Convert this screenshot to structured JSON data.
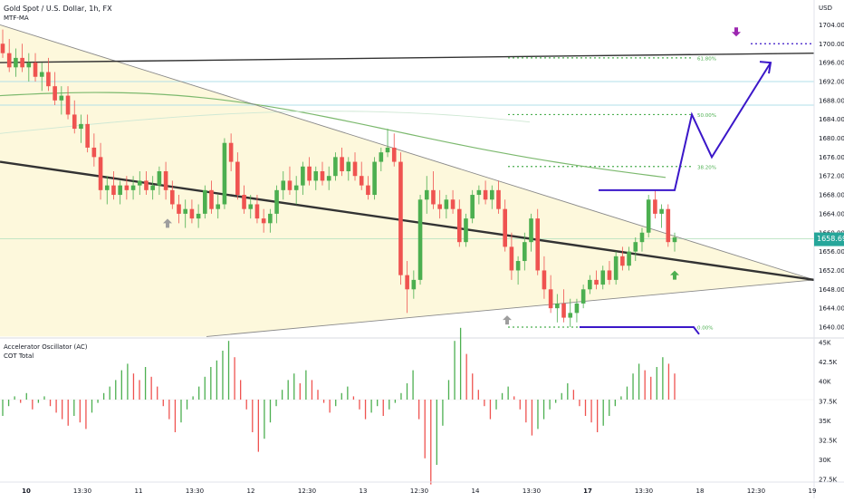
{
  "header": {
    "symbol_title": "Gold Spot / U.S. Dollar, 1h, FX",
    "indicator": "MTF-MA"
  },
  "price_axis": {
    "currency": "USD",
    "ticks": [
      "1704.00",
      "1700.00",
      "1696.00",
      "1692.00",
      "1688.00",
      "1684.00",
      "1680.00",
      "1676.00",
      "1672.00",
      "1668.00",
      "1664.00",
      "1660.00",
      "1656.00",
      "1652.00",
      "1648.00",
      "1644.00",
      "1640.00"
    ],
    "current_price": "1658.69",
    "current_price_color": "#26a69a"
  },
  "oscillator_pane": {
    "title": "Accelerator Oscillator (AC)",
    "subtitle": "COT Total",
    "ticks": [
      "45K",
      "42.5K",
      "40K",
      "37.5K",
      "35K",
      "32.5K",
      "30K",
      "27.5K"
    ]
  },
  "time_axis": {
    "labels": [
      "10",
      "13:30",
      "11",
      "13:30",
      "12",
      "12:30",
      "13",
      "12:30",
      "14",
      "13:30",
      "17",
      "13:30",
      "18",
      "12:30",
      "19"
    ],
    "bold_labels": [
      "10",
      "17"
    ]
  },
  "fib_levels": [
    {
      "label": "61.80%",
      "price": 1697
    },
    {
      "label": "50.00%",
      "price": 1685
    },
    {
      "label": "38.20%",
      "price": 1674
    },
    {
      "label": "0.00%",
      "price": 1640
    }
  ],
  "colors": {
    "bull": "#4caf50",
    "bear": "#ef5350",
    "pattern_fill": "#fdf8dc",
    "projection": "#3b17c9",
    "ma_green": "#7cb96e",
    "trendline": "#333333",
    "marker_purple": "#9c27b0"
  },
  "chart_data": {
    "type": "candlestick",
    "symbol": "XAUUSD",
    "timeframe": "1h",
    "y_range": [
      1638,
      1707
    ],
    "ohlc": [
      {
        "o": 1700,
        "h": 1703,
        "l": 1697,
        "c": 1698
      },
      {
        "o": 1698,
        "h": 1701,
        "l": 1694,
        "c": 1695
      },
      {
        "o": 1695,
        "h": 1699,
        "l": 1693,
        "c": 1697
      },
      {
        "o": 1697,
        "h": 1700,
        "l": 1694,
        "c": 1695
      },
      {
        "o": 1695,
        "h": 1698,
        "l": 1692,
        "c": 1696
      },
      {
        "o": 1696,
        "h": 1698,
        "l": 1692,
        "c": 1693
      },
      {
        "o": 1693,
        "h": 1696,
        "l": 1690,
        "c": 1694
      },
      {
        "o": 1694,
        "h": 1697,
        "l": 1690,
        "c": 1691
      },
      {
        "o": 1691,
        "h": 1694,
        "l": 1687,
        "c": 1688
      },
      {
        "o": 1688,
        "h": 1691,
        "l": 1685,
        "c": 1689
      },
      {
        "o": 1689,
        "h": 1691,
        "l": 1684,
        "c": 1685
      },
      {
        "o": 1685,
        "h": 1688,
        "l": 1681,
        "c": 1682
      },
      {
        "o": 1682,
        "h": 1685,
        "l": 1679,
        "c": 1683
      },
      {
        "o": 1683,
        "h": 1685,
        "l": 1677,
        "c": 1678
      },
      {
        "o": 1678,
        "h": 1681,
        "l": 1674,
        "c": 1676
      },
      {
        "o": 1676,
        "h": 1679,
        "l": 1667,
        "c": 1669
      },
      {
        "o": 1669,
        "h": 1672,
        "l": 1666,
        "c": 1670
      },
      {
        "o": 1670,
        "h": 1673,
        "l": 1667,
        "c": 1668
      },
      {
        "o": 1668,
        "h": 1671,
        "l": 1666,
        "c": 1670
      },
      {
        "o": 1670,
        "h": 1672,
        "l": 1667,
        "c": 1669
      },
      {
        "o": 1669,
        "h": 1672,
        "l": 1667,
        "c": 1670
      },
      {
        "o": 1670,
        "h": 1673,
        "l": 1668,
        "c": 1671
      },
      {
        "o": 1671,
        "h": 1673,
        "l": 1668,
        "c": 1669
      },
      {
        "o": 1669,
        "h": 1672,
        "l": 1667,
        "c": 1670
      },
      {
        "o": 1670,
        "h": 1674,
        "l": 1668,
        "c": 1673
      },
      {
        "o": 1673,
        "h": 1675,
        "l": 1667,
        "c": 1669
      },
      {
        "o": 1669,
        "h": 1671,
        "l": 1665,
        "c": 1666
      },
      {
        "o": 1666,
        "h": 1668,
        "l": 1662,
        "c": 1664
      },
      {
        "o": 1664,
        "h": 1667,
        "l": 1661,
        "c": 1665
      },
      {
        "o": 1665,
        "h": 1667,
        "l": 1662,
        "c": 1663
      },
      {
        "o": 1663,
        "h": 1666,
        "l": 1661,
        "c": 1664
      },
      {
        "o": 1664,
        "h": 1670,
        "l": 1663,
        "c": 1669
      },
      {
        "o": 1669,
        "h": 1671,
        "l": 1664,
        "c": 1665
      },
      {
        "o": 1665,
        "h": 1668,
        "l": 1663,
        "c": 1666
      },
      {
        "o": 1666,
        "h": 1680,
        "l": 1665,
        "c": 1679
      },
      {
        "o": 1679,
        "h": 1681,
        "l": 1673,
        "c": 1675
      },
      {
        "o": 1675,
        "h": 1677,
        "l": 1667,
        "c": 1668
      },
      {
        "o": 1668,
        "h": 1670,
        "l": 1664,
        "c": 1665
      },
      {
        "o": 1665,
        "h": 1668,
        "l": 1663,
        "c": 1666
      },
      {
        "o": 1666,
        "h": 1668,
        "l": 1662,
        "c": 1663
      },
      {
        "o": 1663,
        "h": 1665,
        "l": 1660,
        "c": 1662
      },
      {
        "o": 1662,
        "h": 1665,
        "l": 1660,
        "c": 1664
      },
      {
        "o": 1664,
        "h": 1670,
        "l": 1662,
        "c": 1669
      },
      {
        "o": 1669,
        "h": 1673,
        "l": 1667,
        "c": 1671
      },
      {
        "o": 1671,
        "h": 1674,
        "l": 1668,
        "c": 1669
      },
      {
        "o": 1669,
        "h": 1672,
        "l": 1666,
        "c": 1670
      },
      {
        "o": 1670,
        "h": 1675,
        "l": 1668,
        "c": 1674
      },
      {
        "o": 1674,
        "h": 1676,
        "l": 1670,
        "c": 1671
      },
      {
        "o": 1671,
        "h": 1674,
        "l": 1669,
        "c": 1673
      },
      {
        "o": 1673,
        "h": 1675,
        "l": 1670,
        "c": 1671
      },
      {
        "o": 1671,
        "h": 1674,
        "l": 1669,
        "c": 1672
      },
      {
        "o": 1672,
        "h": 1677,
        "l": 1671,
        "c": 1676
      },
      {
        "o": 1676,
        "h": 1678,
        "l": 1672,
        "c": 1673
      },
      {
        "o": 1673,
        "h": 1676,
        "l": 1671,
        "c": 1675
      },
      {
        "o": 1675,
        "h": 1677,
        "l": 1671,
        "c": 1672
      },
      {
        "o": 1672,
        "h": 1675,
        "l": 1669,
        "c": 1670
      },
      {
        "o": 1670,
        "h": 1672,
        "l": 1667,
        "c": 1668
      },
      {
        "o": 1668,
        "h": 1676,
        "l": 1667,
        "c": 1675
      },
      {
        "o": 1675,
        "h": 1678,
        "l": 1673,
        "c": 1677
      },
      {
        "o": 1677,
        "h": 1682,
        "l": 1676,
        "c": 1678
      },
      {
        "o": 1678,
        "h": 1681,
        "l": 1674,
        "c": 1675
      },
      {
        "o": 1675,
        "h": 1677,
        "l": 1649,
        "c": 1651
      },
      {
        "o": 1651,
        "h": 1654,
        "l": 1643,
        "c": 1648
      },
      {
        "o": 1648,
        "h": 1652,
        "l": 1646,
        "c": 1650
      },
      {
        "o": 1650,
        "h": 1668,
        "l": 1649,
        "c": 1667
      },
      {
        "o": 1667,
        "h": 1672,
        "l": 1664,
        "c": 1669
      },
      {
        "o": 1669,
        "h": 1673,
        "l": 1665,
        "c": 1666
      },
      {
        "o": 1666,
        "h": 1669,
        "l": 1663,
        "c": 1665
      },
      {
        "o": 1665,
        "h": 1668,
        "l": 1663,
        "c": 1667
      },
      {
        "o": 1667,
        "h": 1669,
        "l": 1664,
        "c": 1665
      },
      {
        "o": 1665,
        "h": 1667,
        "l": 1657,
        "c": 1658
      },
      {
        "o": 1658,
        "h": 1664,
        "l": 1657,
        "c": 1663
      },
      {
        "o": 1663,
        "h": 1669,
        "l": 1662,
        "c": 1668
      },
      {
        "o": 1668,
        "h": 1670,
        "l": 1666,
        "c": 1669
      },
      {
        "o": 1669,
        "h": 1671,
        "l": 1666,
        "c": 1667
      },
      {
        "o": 1667,
        "h": 1670,
        "l": 1665,
        "c": 1669
      },
      {
        "o": 1669,
        "h": 1671,
        "l": 1664,
        "c": 1665
      },
      {
        "o": 1665,
        "h": 1667,
        "l": 1656,
        "c": 1657
      },
      {
        "o": 1657,
        "h": 1660,
        "l": 1650,
        "c": 1652
      },
      {
        "o": 1652,
        "h": 1655,
        "l": 1649,
        "c": 1654
      },
      {
        "o": 1654,
        "h": 1660,
        "l": 1652,
        "c": 1658
      },
      {
        "o": 1658,
        "h": 1664,
        "l": 1656,
        "c": 1663
      },
      {
        "o": 1663,
        "h": 1665,
        "l": 1651,
        "c": 1652
      },
      {
        "o": 1652,
        "h": 1655,
        "l": 1646,
        "c": 1648
      },
      {
        "o": 1648,
        "h": 1651,
        "l": 1643,
        "c": 1644
      },
      {
        "o": 1644,
        "h": 1647,
        "l": 1641,
        "c": 1645
      },
      {
        "o": 1645,
        "h": 1648,
        "l": 1641,
        "c": 1642
      },
      {
        "o": 1642,
        "h": 1646,
        "l": 1640,
        "c": 1643
      },
      {
        "o": 1643,
        "h": 1646,
        "l": 1641,
        "c": 1645
      },
      {
        "o": 1645,
        "h": 1649,
        "l": 1644,
        "c": 1648
      },
      {
        "o": 1648,
        "h": 1651,
        "l": 1647,
        "c": 1650
      },
      {
        "o": 1650,
        "h": 1652,
        "l": 1648,
        "c": 1649
      },
      {
        "o": 1649,
        "h": 1653,
        "l": 1648,
        "c": 1652
      },
      {
        "o": 1652,
        "h": 1654,
        "l": 1649,
        "c": 1650
      },
      {
        "o": 1650,
        "h": 1656,
        "l": 1649,
        "c": 1655
      },
      {
        "o": 1655,
        "h": 1657,
        "l": 1652,
        "c": 1653
      },
      {
        "o": 1653,
        "h": 1657,
        "l": 1652,
        "c": 1656
      },
      {
        "o": 1656,
        "h": 1659,
        "l": 1654,
        "c": 1658
      },
      {
        "o": 1658,
        "h": 1661,
        "l": 1656,
        "c": 1660
      },
      {
        "o": 1660,
        "h": 1668,
        "l": 1659,
        "c": 1667
      },
      {
        "o": 1667,
        "h": 1669,
        "l": 1663,
        "c": 1664
      },
      {
        "o": 1664,
        "h": 1666,
        "l": 1661,
        "c": 1665
      },
      {
        "o": 1665,
        "h": 1666,
        "l": 1657,
        "c": 1658
      },
      {
        "o": 1658,
        "h": 1660,
        "l": 1656,
        "c": 1659
      }
    ],
    "oscillator": [
      {
        "v": -5
      },
      {
        "v": -2
      },
      {
        "v": 1
      },
      {
        "v": -1
      },
      {
        "v": 2
      },
      {
        "v": -3
      },
      {
        "v": -1
      },
      {
        "v": 1
      },
      {
        "v": -2
      },
      {
        "v": -4
      },
      {
        "v": -6
      },
      {
        "v": -8
      },
      {
        "v": -5
      },
      {
        "v": -7
      },
      {
        "v": -9
      },
      {
        "v": -4
      },
      {
        "v": -1
      },
      {
        "v": 2
      },
      {
        "v": 4
      },
      {
        "v": 6
      },
      {
        "v": 9
      },
      {
        "v": 11
      },
      {
        "v": 8
      },
      {
        "v": 6
      },
      {
        "v": 10
      },
      {
        "v": 7
      },
      {
        "v": 4
      },
      {
        "v": -2
      },
      {
        "v": -6
      },
      {
        "v": -10
      },
      {
        "v": -7
      },
      {
        "v": -3
      },
      {
        "v": 1
      },
      {
        "v": 4
      },
      {
        "v": 7
      },
      {
        "v": 10
      },
      {
        "v": 12
      },
      {
        "v": 15
      },
      {
        "v": 18
      },
      {
        "v": 13
      },
      {
        "v": 6
      },
      {
        "v": -3
      },
      {
        "v": -10
      },
      {
        "v": -16
      },
      {
        "v": -12
      },
      {
        "v": -7
      },
      {
        "v": -2
      },
      {
        "v": 3
      },
      {
        "v": 6
      },
      {
        "v": 8
      },
      {
        "v": 5
      },
      {
        "v": 9
      },
      {
        "v": 6
      },
      {
        "v": 3
      },
      {
        "v": -1
      },
      {
        "v": -4
      },
      {
        "v": -2
      },
      {
        "v": 2
      },
      {
        "v": 4
      },
      {
        "v": 1
      },
      {
        "v": -3
      },
      {
        "v": -6
      },
      {
        "v": -4
      },
      {
        "v": -2
      },
      {
        "v": -5
      },
      {
        "v": -3
      },
      {
        "v": -1
      },
      {
        "v": 2
      },
      {
        "v": 5
      },
      {
        "v": 9
      },
      {
        "v": -6
      },
      {
        "v": -18
      },
      {
        "v": -26
      },
      {
        "v": -20
      },
      {
        "v": -8
      },
      {
        "v": 6
      },
      {
        "v": 18
      },
      {
        "v": 22
      },
      {
        "v": 14
      },
      {
        "v": 8
      },
      {
        "v": 3
      },
      {
        "v": -2
      },
      {
        "v": -6
      },
      {
        "v": -3
      },
      {
        "v": 2
      },
      {
        "v": 4
      },
      {
        "v": 1
      },
      {
        "v": -3
      },
      {
        "v": -7
      },
      {
        "v": -11
      },
      {
        "v": -9
      },
      {
        "v": -6
      },
      {
        "v": -3
      },
      {
        "v": -1
      },
      {
        "v": 2
      },
      {
        "v": 5
      },
      {
        "v": 3
      },
      {
        "v": -2
      },
      {
        "v": -5
      },
      {
        "v": -7
      },
      {
        "v": -10
      },
      {
        "v": -8
      },
      {
        "v": -5
      },
      {
        "v": -2
      },
      {
        "v": 1
      },
      {
        "v": 4
      },
      {
        "v": 8
      },
      {
        "v": 11
      },
      {
        "v": 9
      },
      {
        "v": 7
      },
      {
        "v": 10
      },
      {
        "v": 13
      },
      {
        "v": 11
      },
      {
        "v": 8
      }
    ],
    "trendlines": {
      "triangle_upper": [
        [
          0,
          1704
        ],
        [
          899,
          1650
        ]
      ],
      "triangle_lower": [
        [
          228,
          1638
        ],
        [
          899,
          1650
        ]
      ],
      "thick_downtrend": [
        [
          0,
          1675
        ],
        [
          899,
          1650
        ]
      ],
      "top_resistance": [
        [
          0,
          1696
        ],
        [
          899,
          1698
        ]
      ],
      "ma_long_start": 1690,
      "ma_long_end": 1670
    },
    "projection_path": [
      [
        661,
        1669
      ],
      [
        745,
        1669
      ],
      [
        764,
        1685
      ],
      [
        786,
        1676
      ],
      [
        851,
        1696
      ]
    ],
    "target_price": 1700,
    "oscillator_range": [
      -30,
      25
    ]
  }
}
